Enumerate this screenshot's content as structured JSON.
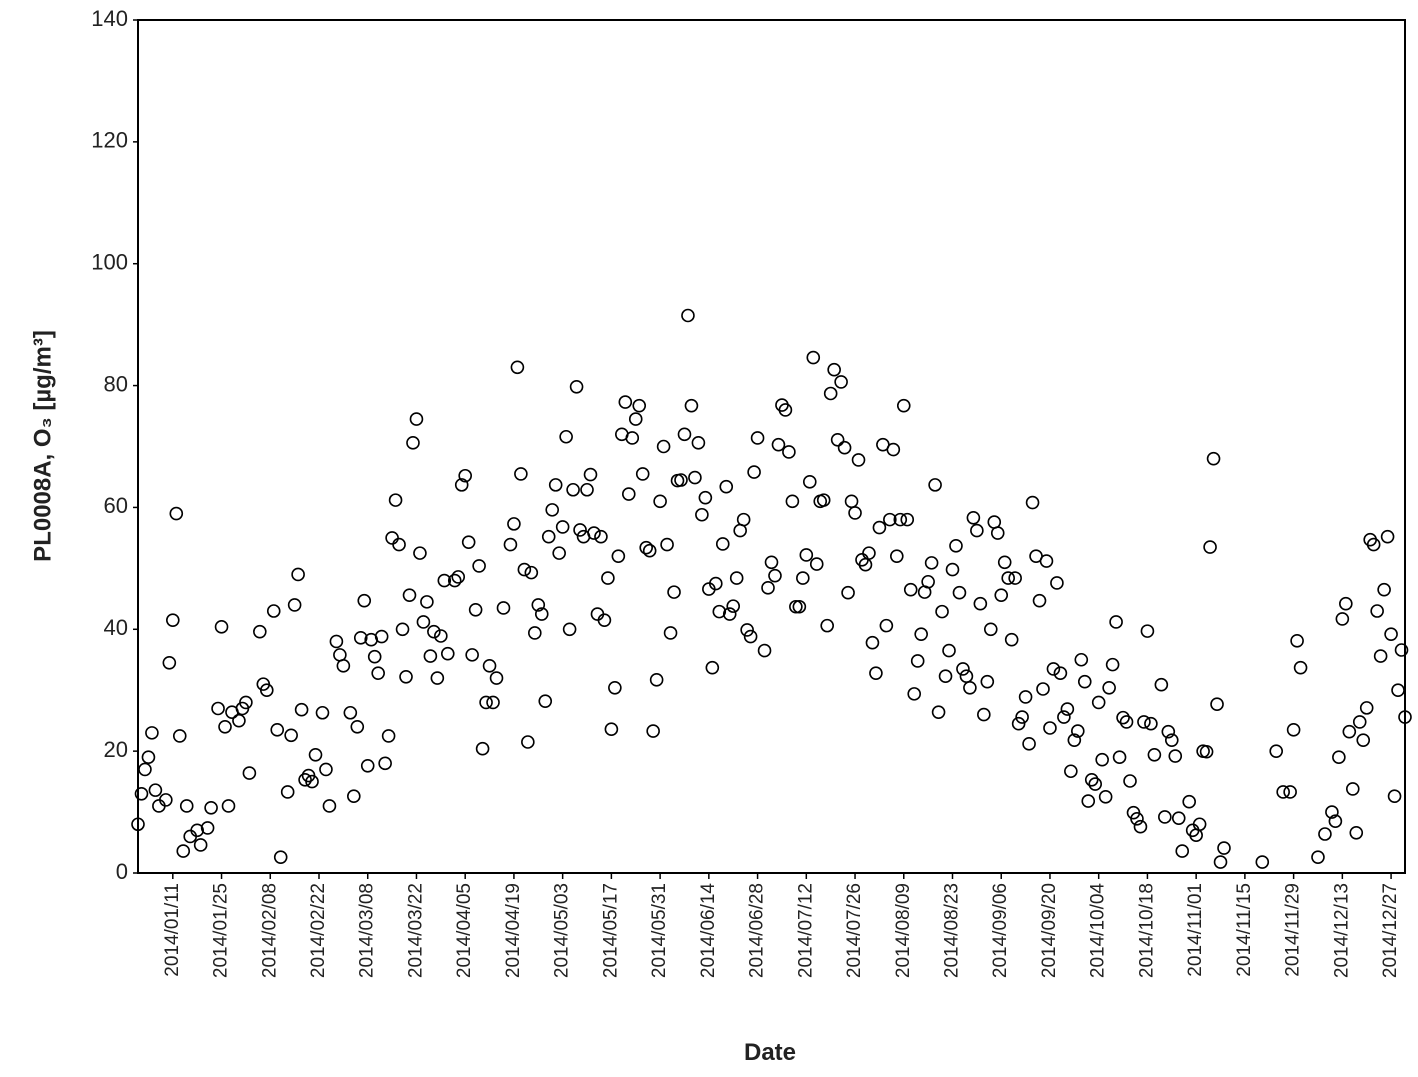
{
  "chart_data": {
    "type": "scatter",
    "y_label": "PL0008A, O₃ [µg/m³]",
    "x_label": "Date",
    "color": "#000000",
    "xlim": [
      "2014/01/01",
      "2014/12/31"
    ],
    "xticks": [
      "2014/01/11",
      "2014/01/25",
      "2014/02/08",
      "2014/02/22",
      "2014/03/08",
      "2014/03/22",
      "2014/04/05",
      "2014/04/19",
      "2014/05/03",
      "2014/05/17",
      "2014/05/31",
      "2014/06/14",
      "2014/06/28",
      "2014/07/12",
      "2014/07/26",
      "2014/08/09",
      "2014/08/23",
      "2014/09/06",
      "2014/09/20",
      "2014/10/04",
      "2014/10/18",
      "2014/11/01",
      "2014/11/15",
      "2014/11/29",
      "2014/12/13",
      "2014/12/27"
    ],
    "ylim": [
      0,
      140
    ],
    "yticks": [
      0,
      20,
      40,
      60,
      80,
      100,
      120,
      140
    ],
    "grid": false,
    "x": [
      "2014/01/01",
      "2014/01/02",
      "2014/01/03",
      "2014/01/04",
      "2014/01/05",
      "2014/01/06",
      "2014/01/07",
      "2014/01/09",
      "2014/01/10",
      "2014/01/11",
      "2014/01/12",
      "2014/01/13",
      "2014/01/14",
      "2014/01/15",
      "2014/01/16",
      "2014/01/18",
      "2014/01/19",
      "2014/01/21",
      "2014/01/22",
      "2014/01/24",
      "2014/01/25",
      "2014/01/26",
      "2014/01/27",
      "2014/01/28",
      "2014/01/30",
      "2014/01/31",
      "2014/02/01",
      "2014/02/02",
      "2014/02/05",
      "2014/02/06",
      "2014/02/07",
      "2014/02/09",
      "2014/02/10",
      "2014/02/11",
      "2014/02/13",
      "2014/02/14",
      "2014/02/15",
      "2014/02/16",
      "2014/02/17",
      "2014/02/18",
      "2014/02/19",
      "2014/02/20",
      "2014/02/21",
      "2014/02/23",
      "2014/02/24",
      "2014/02/25",
      "2014/02/27",
      "2014/02/28",
      "2014/03/01",
      "2014/03/03",
      "2014/03/04",
      "2014/03/05",
      "2014/03/06",
      "2014/03/07",
      "2014/03/08",
      "2014/03/09",
      "2014/03/10",
      "2014/03/11",
      "2014/03/12",
      "2014/03/13",
      "2014/03/14",
      "2014/03/15",
      "2014/03/16",
      "2014/03/17",
      "2014/03/18",
      "2014/03/19",
      "2014/03/20",
      "2014/03/21",
      "2014/03/22",
      "2014/03/23",
      "2014/03/24",
      "2014/03/25",
      "2014/03/26",
      "2014/03/27",
      "2014/03/28",
      "2014/03/29",
      "2014/03/30",
      "2014/03/31",
      "2014/04/02",
      "2014/04/03",
      "2014/04/04",
      "2014/04/05",
      "2014/04/06",
      "2014/04/07",
      "2014/04/08",
      "2014/04/09",
      "2014/04/10",
      "2014/04/11",
      "2014/04/12",
      "2014/04/13",
      "2014/04/14",
      "2014/04/16",
      "2014/04/18",
      "2014/04/19",
      "2014/04/20",
      "2014/04/21",
      "2014/04/22",
      "2014/04/23",
      "2014/04/24",
      "2014/04/25",
      "2014/04/26",
      "2014/04/27",
      "2014/04/28",
      "2014/04/29",
      "2014/04/30",
      "2014/05/01",
      "2014/05/02",
      "2014/05/03",
      "2014/05/04",
      "2014/05/05",
      "2014/05/06",
      "2014/05/07",
      "2014/05/08",
      "2014/05/09",
      "2014/05/10",
      "2014/05/11",
      "2014/05/12",
      "2014/05/13",
      "2014/05/14",
      "2014/05/15",
      "2014/05/16",
      "2014/05/17",
      "2014/05/18",
      "2014/05/19",
      "2014/05/20",
      "2014/05/21",
      "2014/05/22",
      "2014/05/23",
      "2014/05/24",
      "2014/05/25",
      "2014/05/26",
      "2014/05/27",
      "2014/05/28",
      "2014/05/29",
      "2014/05/30",
      "2014/05/31",
      "2014/06/01",
      "2014/06/02",
      "2014/06/03",
      "2014/06/04",
      "2014/06/05",
      "2014/06/06",
      "2014/06/07",
      "2014/06/08",
      "2014/06/09",
      "2014/06/10",
      "2014/06/11",
      "2014/06/12",
      "2014/06/13",
      "2014/06/14",
      "2014/06/15",
      "2014/06/16",
      "2014/06/17",
      "2014/06/18",
      "2014/06/19",
      "2014/06/20",
      "2014/06/21",
      "2014/06/22",
      "2014/06/23",
      "2014/06/24",
      "2014/06/25",
      "2014/06/26",
      "2014/06/27",
      "2014/06/28",
      "2014/06/30",
      "2014/07/01",
      "2014/07/02",
      "2014/07/03",
      "2014/07/04",
      "2014/07/05",
      "2014/07/06",
      "2014/07/07",
      "2014/07/08",
      "2014/07/09",
      "2014/07/10",
      "2014/07/11",
      "2014/07/12",
      "2014/07/13",
      "2014/07/14",
      "2014/07/15",
      "2014/07/16",
      "2014/07/17",
      "2014/07/18",
      "2014/07/19",
      "2014/07/20",
      "2014/07/21",
      "2014/07/22",
      "2014/07/23",
      "2014/07/24",
      "2014/07/25",
      "2014/07/26",
      "2014/07/27",
      "2014/07/28",
      "2014/07/29",
      "2014/07/30",
      "2014/07/31",
      "2014/08/01",
      "2014/08/02",
      "2014/08/03",
      "2014/08/04",
      "2014/08/05",
      "2014/08/06",
      "2014/08/07",
      "2014/08/08",
      "2014/08/09",
      "2014/08/10",
      "2014/08/11",
      "2014/08/12",
      "2014/08/13",
      "2014/08/14",
      "2014/08/15",
      "2014/08/16",
      "2014/08/17",
      "2014/08/18",
      "2014/08/19",
      "2014/08/20",
      "2014/08/21",
      "2014/08/22",
      "2014/08/23",
      "2014/08/24",
      "2014/08/25",
      "2014/08/26",
      "2014/08/27",
      "2014/08/28",
      "2014/08/29",
      "2014/08/30",
      "2014/08/31",
      "2014/09/01",
      "2014/09/02",
      "2014/09/03",
      "2014/09/04",
      "2014/09/05",
      "2014/09/06",
      "2014/09/07",
      "2014/09/08",
      "2014/09/09",
      "2014/09/10",
      "2014/09/11",
      "2014/09/12",
      "2014/09/13",
      "2014/09/14",
      "2014/09/15",
      "2014/09/16",
      "2014/09/17",
      "2014/09/18",
      "2014/09/19",
      "2014/09/20",
      "2014/09/21",
      "2014/09/22",
      "2014/09/23",
      "2014/09/24",
      "2014/09/25",
      "2014/09/26",
      "2014/09/27",
      "2014/09/28",
      "2014/09/29",
      "2014/09/30",
      "2014/10/01",
      "2014/10/02",
      "2014/10/03",
      "2014/10/04",
      "2014/10/05",
      "2014/10/06",
      "2014/10/07",
      "2014/10/08",
      "2014/10/09",
      "2014/10/10",
      "2014/10/11",
      "2014/10/12",
      "2014/10/13",
      "2014/10/14",
      "2014/10/15",
      "2014/10/16",
      "2014/10/17",
      "2014/10/18",
      "2014/10/19",
      "2014/10/20",
      "2014/10/22",
      "2014/10/23",
      "2014/10/24",
      "2014/10/25",
      "2014/10/26",
      "2014/10/27",
      "2014/10/28",
      "2014/10/30",
      "2014/10/31",
      "2014/11/01",
      "2014/11/02",
      "2014/11/03",
      "2014/11/04",
      "2014/11/05",
      "2014/11/06",
      "2014/11/07",
      "2014/11/08",
      "2014/11/09",
      "2014/11/20",
      "2014/11/24",
      "2014/11/26",
      "2014/11/28",
      "2014/11/29",
      "2014/11/30",
      "2014/12/01",
      "2014/12/06",
      "2014/12/08",
      "2014/12/10",
      "2014/12/11",
      "2014/12/12",
      "2014/12/13",
      "2014/12/14",
      "2014/12/15",
      "2014/12/16",
      "2014/12/17",
      "2014/12/18",
      "2014/12/19",
      "2014/12/20",
      "2014/12/21",
      "2014/12/22",
      "2014/12/23",
      "2014/12/24",
      "2014/12/25",
      "2014/12/26",
      "2014/12/27",
      "2014/12/28",
      "2014/12/29",
      "2014/12/30",
      "2014/12/31"
    ],
    "values": [
      8,
      13,
      17,
      19,
      23,
      13.6,
      11,
      12,
      34.5,
      41.5,
      59,
      22.5,
      3.6,
      11,
      6,
      7,
      4.6,
      7.4,
      10.7,
      27,
      40.4,
      24,
      11,
      26.4,
      25,
      27,
      28,
      16.4,
      39.6,
      31,
      30,
      43,
      23.5,
      2.6,
      13.3,
      22.6,
      44,
      49,
      26.8,
      15.3,
      16,
      15,
      19.4,
      26.3,
      17,
      11,
      38,
      35.8,
      34,
      26.3,
      12.6,
      24,
      38.6,
      44.7,
      17.6,
      38.3,
      35.5,
      32.8,
      38.8,
      18,
      22.5,
      55,
      61.2,
      53.9,
      40,
      32.2,
      45.6,
      70.6,
      74.5,
      52.5,
      41.2,
      44.5,
      35.6,
      39.6,
      32,
      38.9,
      48,
      36,
      48,
      48.6,
      63.7,
      65.2,
      54.3,
      35.8,
      43.2,
      50.4,
      20.4,
      28,
      34,
      28,
      32,
      43.5,
      53.9,
      57.3,
      83,
      65.5,
      49.8,
      21.5,
      49.3,
      39.4,
      44,
      42.5,
      28.2,
      55.2,
      59.6,
      63.7,
      52.5,
      56.8,
      71.6,
      40,
      62.9,
      79.8,
      56.3,
      55.2,
      62.9,
      65.4,
      55.8,
      42.5,
      55.2,
      41.5,
      48.4,
      23.6,
      30.4,
      52,
      72,
      77.3,
      62.2,
      71.4,
      74.5,
      76.7,
      65.5,
      53.4,
      52.9,
      23.3,
      31.7,
      61,
      70,
      53.9,
      39.4,
      46.1,
      64.4,
      64.5,
      72,
      91.5,
      76.7,
      64.9,
      70.6,
      58.8,
      61.6,
      46.6,
      33.7,
      47.5,
      42.9,
      54,
      63.4,
      42.5,
      43.8,
      48.4,
      56.2,
      58,
      39.9,
      38.8,
      65.8,
      71.4,
      36.5,
      46.8,
      51,
      48.8,
      70.3,
      76.8,
      76,
      69.1,
      61,
      43.7,
      43.7,
      48.4,
      52.2,
      64.2,
      84.6,
      50.7,
      61,
      61.2,
      40.6,
      78.7,
      82.6,
      71.1,
      80.6,
      69.8,
      46,
      61,
      59.1,
      67.8,
      51.4,
      50.6,
      52.5,
      37.8,
      32.8,
      56.7,
      70.3,
      40.6,
      58,
      69.5,
      52,
      58,
      76.7,
      58,
      46.5,
      29.4,
      34.8,
      39.2,
      46.1,
      47.8,
      50.9,
      63.7,
      26.4,
      42.9,
      32.3,
      36.5,
      49.8,
      53.7,
      46,
      33.5,
      32.3,
      30.4,
      58.3,
      56.2,
      44.2,
      26,
      31.4,
      40,
      57.6,
      55.8,
      45.6,
      51,
      48.4,
      38.3,
      48.4,
      24.5,
      25.6,
      28.9,
      21.2,
      60.8,
      52,
      44.7,
      30.2,
      51.2,
      23.8,
      33.5,
      47.6,
      32.8,
      25.6,
      26.9,
      16.7,
      21.8,
      23.3,
      35,
      31.4,
      11.8,
      15.3,
      14.6,
      28,
      18.6,
      12.5,
      30.4,
      34.2,
      41.2,
      19,
      25.5,
      24.8,
      15.1,
      9.9,
      8.9,
      7.6,
      24.8,
      39.7,
      24.5,
      19.4,
      30.9,
      9.2,
      23.2,
      21.8,
      19.2,
      9,
      3.6,
      11.7,
      7,
      6.2,
      8,
      20,
      19.9,
      53.5,
      68,
      27.7,
      1.8,
      4.1,
      1.8,
      20,
      13.3,
      13.3,
      23.5,
      38.1,
      33.7,
      2.6,
      6.4,
      10,
      8.5,
      19,
      41.7,
      44.2,
      23.2,
      13.8,
      6.6,
      24.8,
      21.8,
      27.1,
      54.7,
      53.9,
      43,
      35.6,
      46.5,
      55.2,
      39.2,
      12.6,
      30,
      36.6,
      25.6
    ]
  }
}
